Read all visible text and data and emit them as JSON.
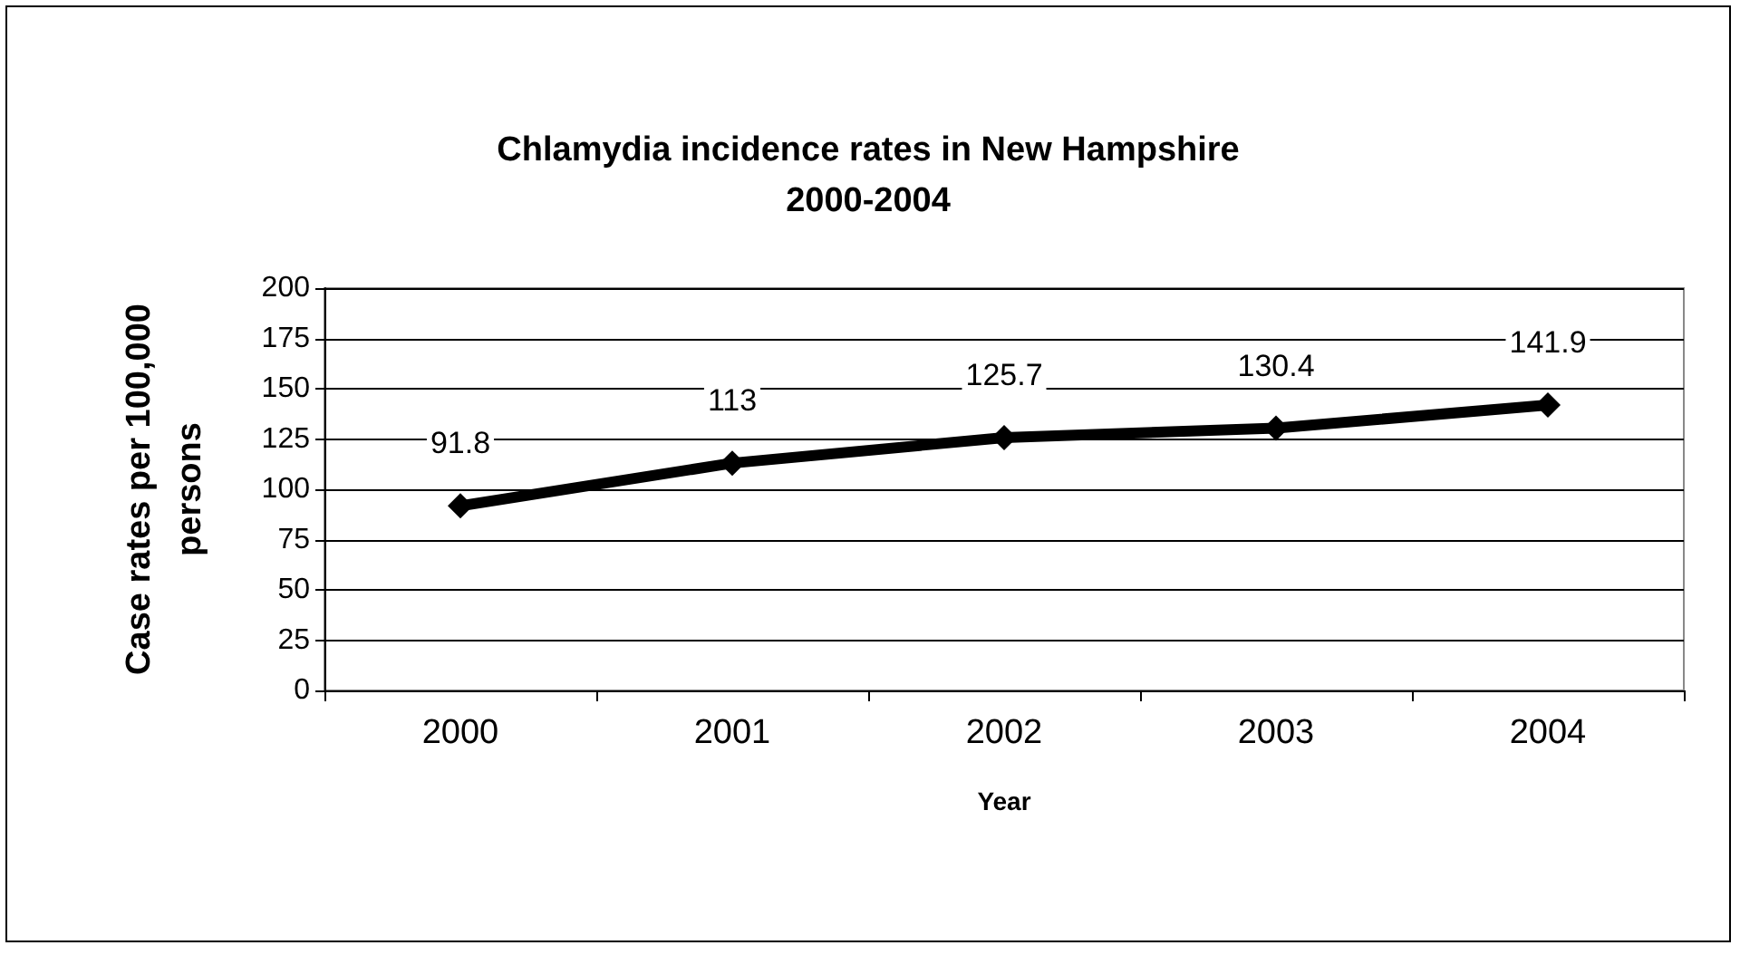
{
  "chart_data": {
    "type": "line",
    "title": "Chlamydia incidence rates in New Hampshire\n2000-2004",
    "xlabel": "Year",
    "ylabel": "Case rates per 100,000\npersons",
    "categories": [
      "2000",
      "2001",
      "2002",
      "2003",
      "2004"
    ],
    "series": [
      {
        "color": "#000000",
        "values": [
          91.8,
          113,
          125.7,
          130.4,
          141.9
        ]
      }
    ],
    "ylim": [
      0,
      200
    ],
    "yticks": [
      0,
      25,
      50,
      75,
      100,
      125,
      150,
      175,
      200
    ],
    "grid": "y",
    "data_labels": true,
    "marker": "diamond",
    "line_style": "solid"
  }
}
